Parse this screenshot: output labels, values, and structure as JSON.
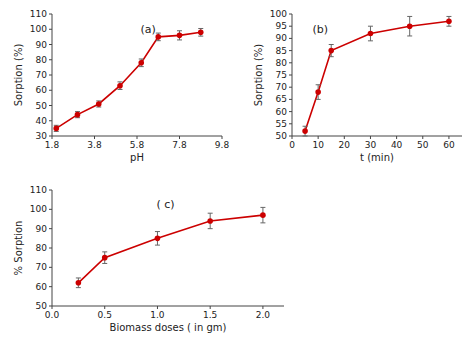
{
  "chart_data": [
    {
      "type": "line",
      "x": [
        2.0,
        3.0,
        4.0,
        5.0,
        6.0,
        6.8,
        7.8,
        8.8
      ],
      "values": [
        35,
        44,
        51,
        63,
        78,
        95,
        96,
        98
      ],
      "yerr": [
        2,
        2,
        2,
        2.5,
        2.5,
        2.5,
        3,
        2.5
      ],
      "color": "#cc0000",
      "marker": "circle",
      "grid": false,
      "x_label": "pH",
      "y_label": "Sorption (%)",
      "xlim": [
        1.8,
        9.8
      ],
      "ylim": [
        30,
        110
      ],
      "xticks": [
        1.8,
        3.8,
        5.8,
        7.8,
        9.8
      ],
      "yticks": [
        30,
        40,
        50,
        60,
        70,
        80,
        90,
        100,
        110
      ],
      "annotations": [
        "(a)"
      ]
    },
    {
      "type": "line",
      "x": [
        5,
        10,
        15,
        30,
        45,
        60
      ],
      "values": [
        52,
        68,
        85,
        92,
        95,
        97
      ],
      "yerr": [
        2,
        3,
        2.5,
        3,
        4,
        2
      ],
      "color": "#cc0000",
      "marker": "circle",
      "grid": false,
      "x_label": "t (min)",
      "y_label": "Sorption (%)",
      "xlim": [
        0,
        65
      ],
      "ylim": [
        50,
        100
      ],
      "xticks": [
        0,
        10,
        20,
        30,
        40,
        50,
        60
      ],
      "yticks": [
        50,
        55,
        60,
        65,
        70,
        75,
        80,
        85,
        90,
        95,
        100
      ],
      "annotations": [
        "(b)"
      ]
    },
    {
      "type": "line",
      "x": [
        0.25,
        0.5,
        1.0,
        1.5,
        2.0
      ],
      "values": [
        62,
        75,
        85,
        94,
        97
      ],
      "yerr": [
        2.5,
        3,
        3.5,
        4,
        4
      ],
      "color": "#cc0000",
      "marker": "circle",
      "grid": false,
      "x_label": "Biomass doses ( in gm)",
      "y_label": "% Sorption",
      "xlim": [
        0,
        2.2
      ],
      "ylim": [
        50,
        110
      ],
      "xticks": [
        {
          "value": 0,
          "label": "0.0"
        },
        0.5,
        {
          "value": 1.0,
          "label": "1.0"
        },
        1.5,
        {
          "value": 2.0,
          "label": "2.0"
        }
      ],
      "yticks": [
        50,
        60,
        70,
        80,
        90,
        100,
        110
      ],
      "annotations": [
        "( c)"
      ]
    }
  ]
}
